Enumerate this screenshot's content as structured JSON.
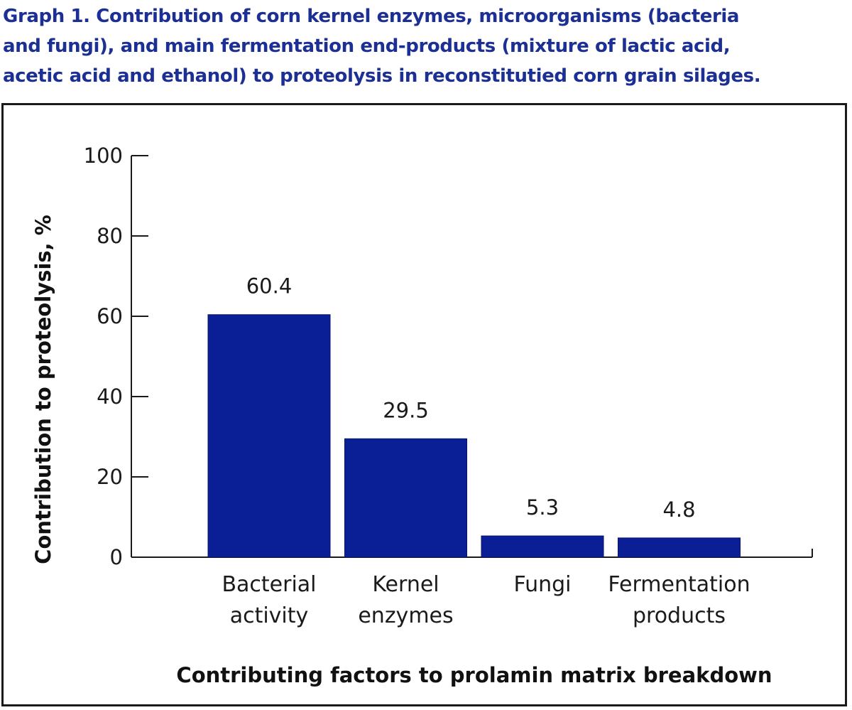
{
  "chart_data": {
    "type": "bar",
    "title": "Graph 1.  Contribution of corn kernel enzymes, microorganisms (bacteria and fungi), and main fermentation end-products (mixture of lactic acid, acetic acid and ethanol) to proteolysis in reconstitutied corn grain silages.",
    "title_lines": [
      "Graph 1.  Contribution of corn kernel enzymes, microorganisms (bacteria",
      "and fungi), and main fermentation end-products (mixture of lactic acid,",
      "acetic acid and ethanol) to proteolysis in reconstitutied corn grain silages."
    ],
    "categories": [
      [
        "Bacterial",
        "activity"
      ],
      [
        "Kernel",
        "enzymes"
      ],
      [
        "Fungi"
      ],
      [
        "Fermentation",
        "products"
      ]
    ],
    "values": [
      60.4,
      29.5,
      5.3,
      4.8
    ],
    "value_labels": [
      "60.4",
      "29.5",
      "5.3",
      "4.8"
    ],
    "xlabel": "Contributing factors to prolamin matrix breakdown",
    "ylabel": "Contribution to proteolysis, %",
    "ylim": [
      0,
      100
    ],
    "yticks": [
      0,
      20,
      40,
      60,
      80,
      100
    ],
    "grid": false,
    "bar_color": "#0a1e96",
    "title_color": "#1c2f94"
  }
}
